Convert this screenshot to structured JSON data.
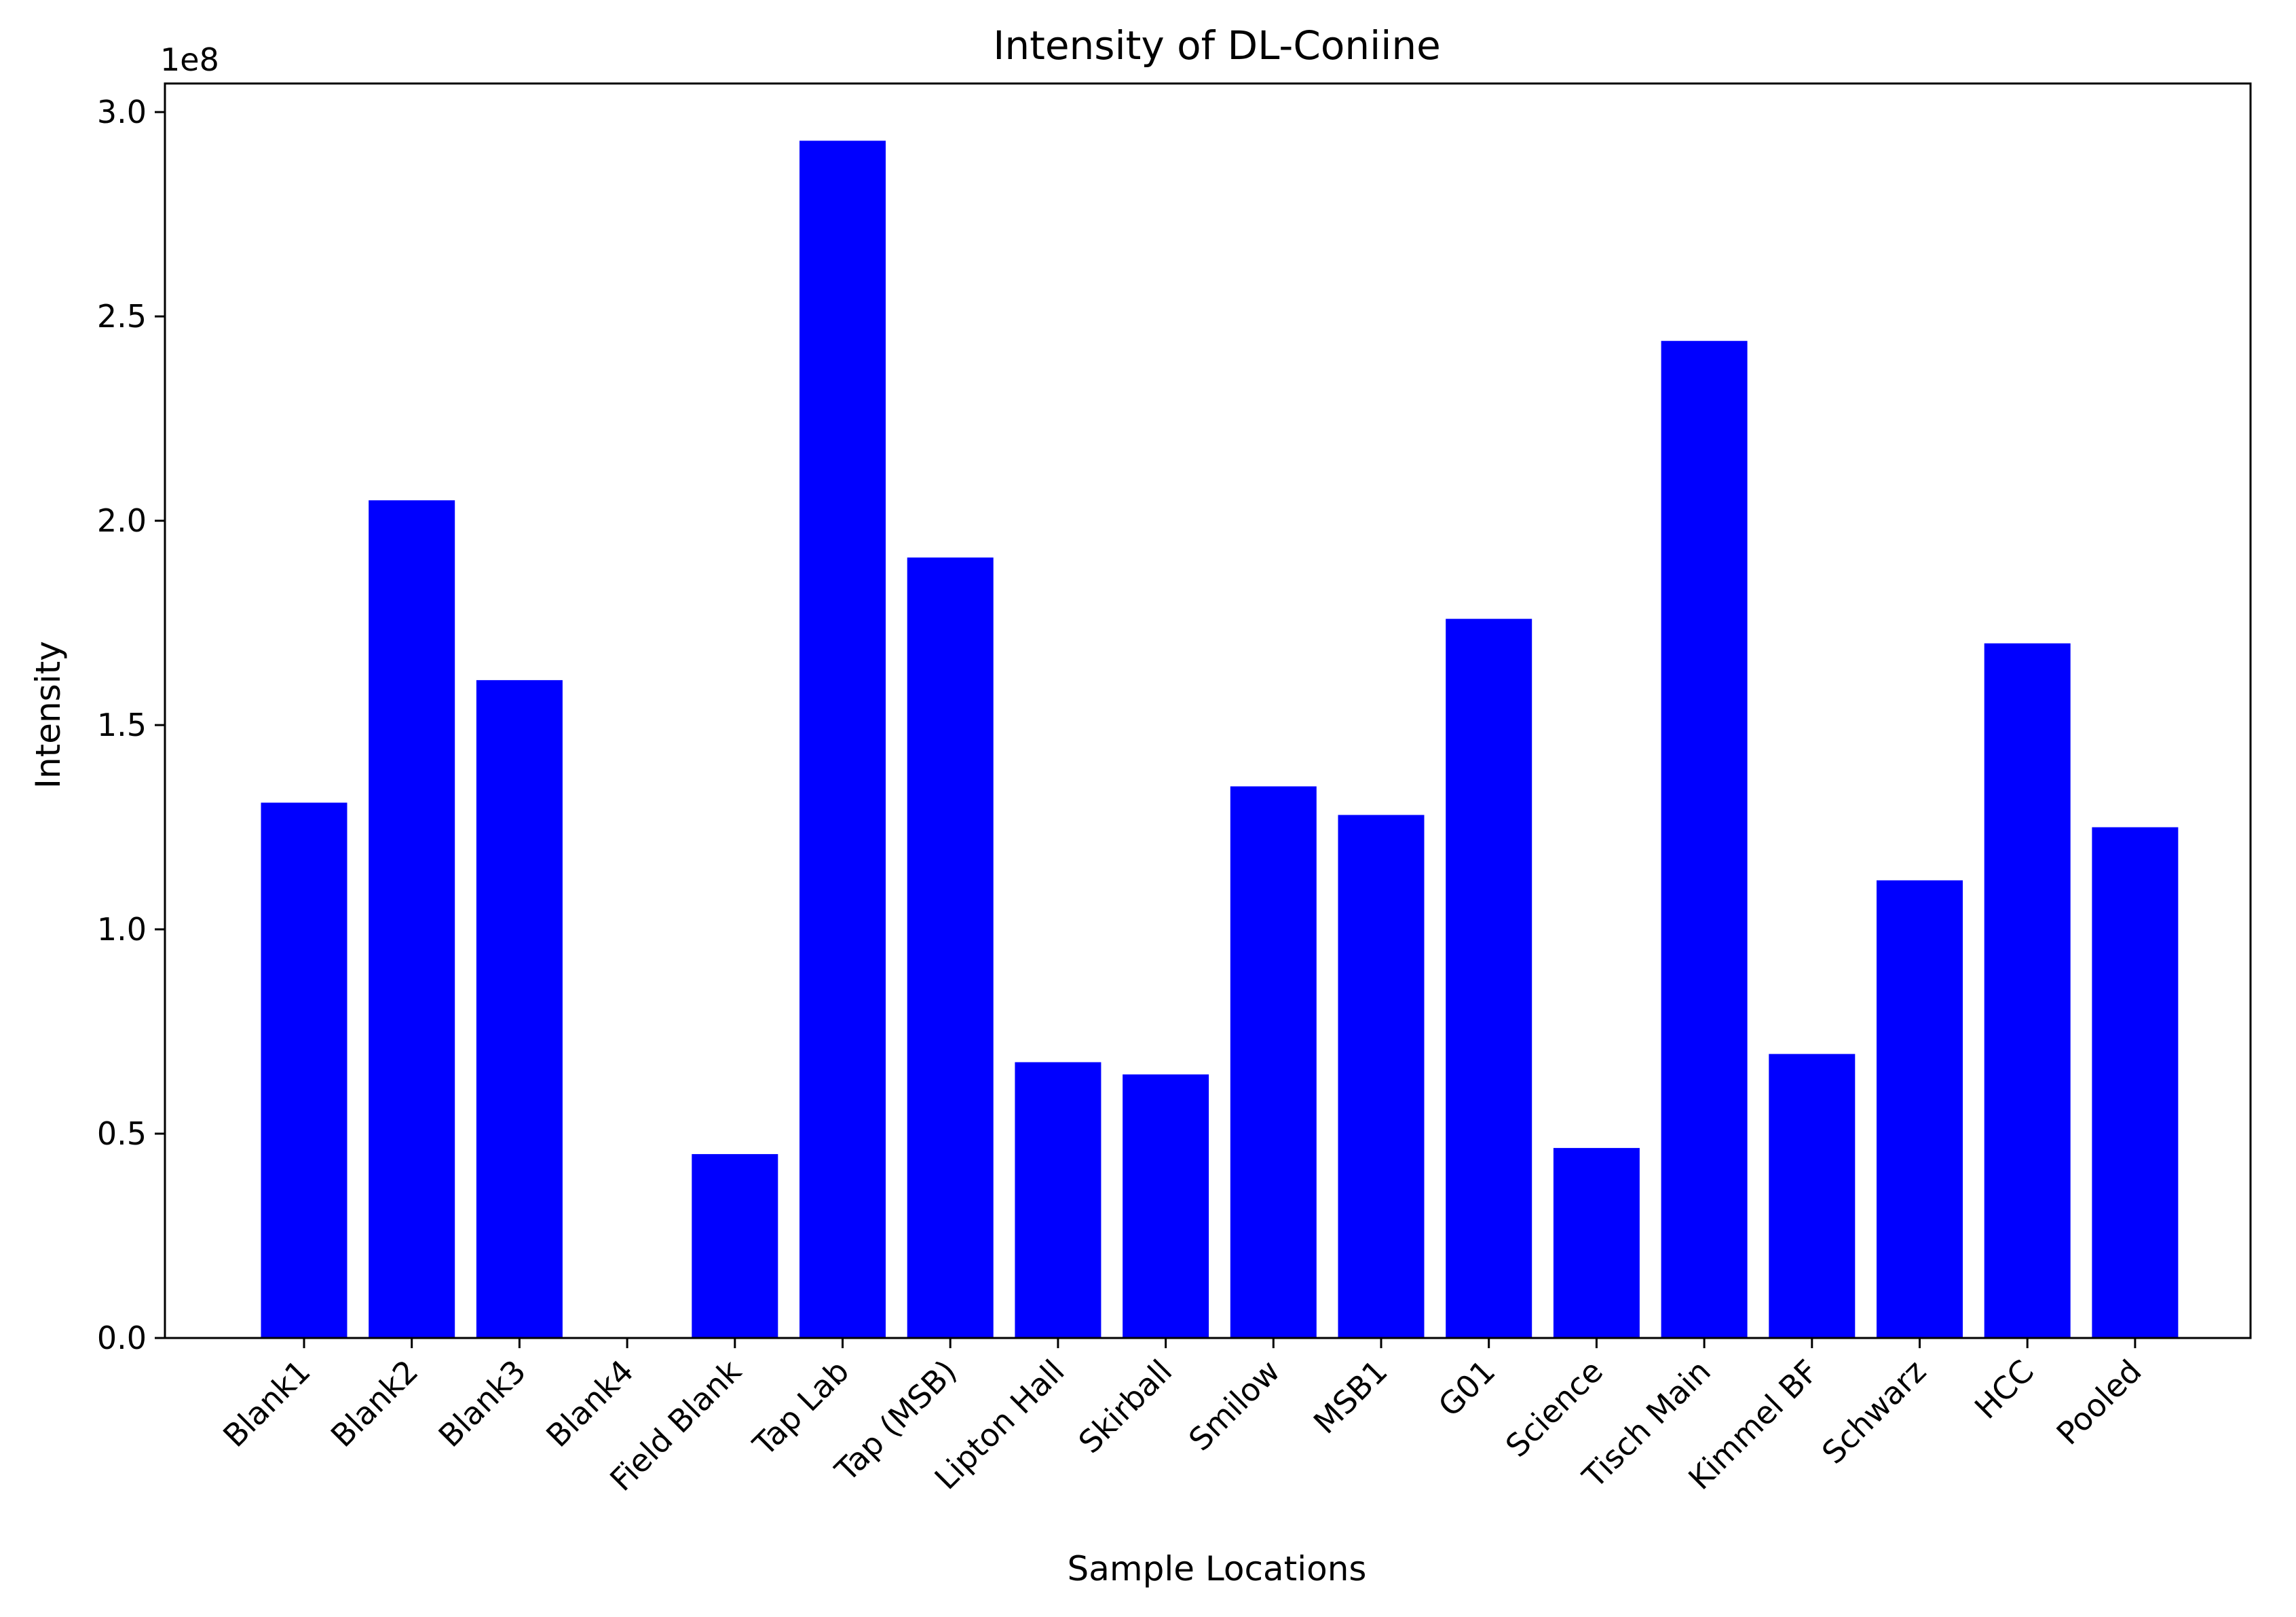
{
  "chart_data": {
    "type": "bar",
    "title": "Intensity of DL-Coniine",
    "xlabel": "Sample Locations",
    "ylabel": "Intensity",
    "y_offset_label": "1e8",
    "ylim": [
      0,
      3.07
    ],
    "y_ticks": [
      0.0,
      0.5,
      1.0,
      1.5,
      2.0,
      2.5,
      3.0
    ],
    "y_tick_labels": [
      "0.0",
      "0.5",
      "1.0",
      "1.5",
      "2.0",
      "2.5",
      "3.0"
    ],
    "grid": false,
    "bar_color": "#0000ff",
    "categories": [
      "Blank1",
      "Blank2",
      "Blank3",
      "Blank4",
      "Field Blank",
      "Tap Lab",
      "Tap (MSB)",
      "Lipton Hall",
      "Skirball",
      "Smilow",
      "MSB1",
      "G01",
      "Science",
      "Tisch Main",
      "Kimmel BF",
      "Schwarz",
      "HCC",
      "Pooled"
    ],
    "values": [
      1.31,
      2.05,
      1.61,
      0.0,
      0.45,
      2.93,
      1.91,
      0.675,
      0.645,
      1.35,
      1.28,
      1.76,
      0.465,
      2.44,
      0.695,
      1.12,
      1.7,
      1.25
    ]
  }
}
